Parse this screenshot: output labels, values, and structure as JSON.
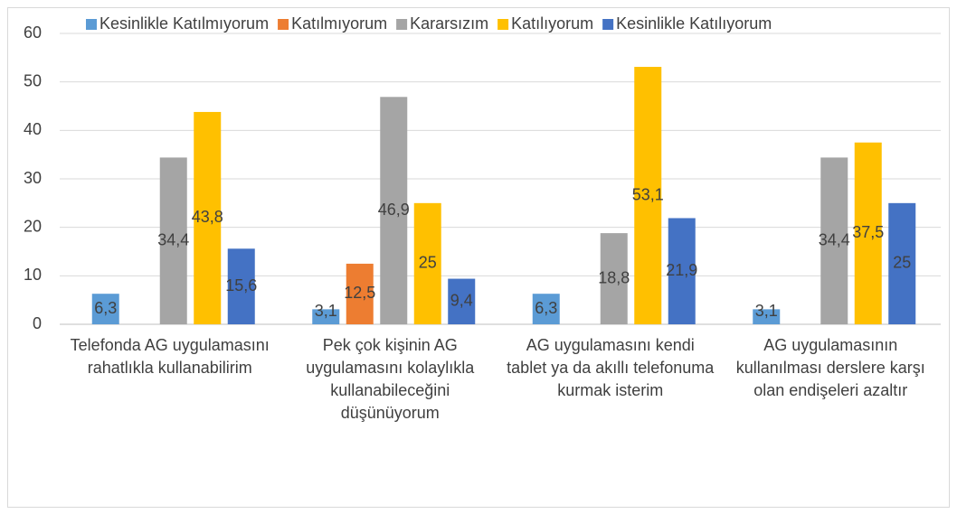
{
  "chart_data": {
    "type": "bar",
    "categories": [
      "Telefonda AG uygulamasını rahatlıkla kullanabilirim",
      "Pek çok kişinin AG uygulamasını kolaylıkla kullanabileceğini düşünüyorum",
      "AG uygulamasını kendi tablet ya da akıllı telefonuma kurmak isterim",
      "AG uygulamasının kullanılması derslere karşı olan endişeleri azaltır"
    ],
    "series": [
      {
        "name": "Kesinlikle Katılmıyorum",
        "color": "#5b9bd5",
        "values": [
          6.3,
          3.1,
          6.3,
          3.1
        ],
        "value_labels": [
          "6,3",
          "3,1",
          "6,3",
          "3,1"
        ]
      },
      {
        "name": "Katılmıyorum",
        "color": "#ed7d31",
        "values": [
          null,
          12.5,
          null,
          null
        ],
        "value_labels": [
          null,
          "12,5",
          null,
          null
        ]
      },
      {
        "name": "Kararsızım",
        "color": "#a5a5a5",
        "values": [
          34.4,
          46.9,
          18.8,
          34.4
        ],
        "value_labels": [
          "34,4",
          "46,9",
          "18,8",
          "34,4"
        ]
      },
      {
        "name": "Katılıyorum",
        "color": "#ffc000",
        "values": [
          43.8,
          25,
          53.1,
          37.5
        ],
        "value_labels": [
          "43,8",
          "25",
          "53,1",
          "37,5"
        ]
      },
      {
        "name": "Kesinlikle Katılıyorum",
        "color": "#4472c4",
        "values": [
          15.6,
          9.4,
          21.9,
          25
        ],
        "value_labels": [
          "15,6",
          "9,4",
          "21,9",
          "25"
        ]
      }
    ],
    "ylim": [
      0,
      60
    ],
    "yticks": [
      0,
      10,
      20,
      30,
      40,
      50,
      60
    ],
    "grid": true,
    "legend": "top"
  }
}
